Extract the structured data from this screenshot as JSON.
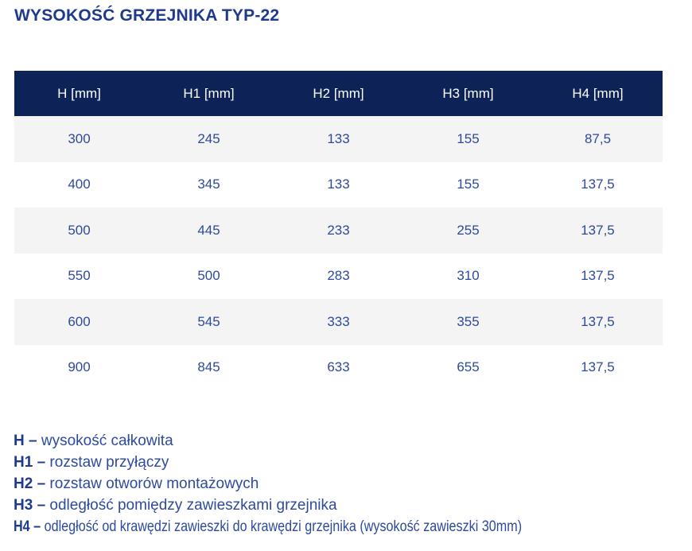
{
  "page": {
    "title": "WYSOKOŚĆ GRZEJNIKA TYP-22"
  },
  "table": {
    "headers": [
      "H [mm]",
      "H1 [mm]",
      "H2 [mm]",
      "H3 [mm]",
      "H4 [mm]"
    ],
    "rows": [
      [
        "300",
        "245",
        "133",
        "155",
        "87,5"
      ],
      [
        "400",
        "345",
        "133",
        "155",
        "137,5"
      ],
      [
        "500",
        "445",
        "233",
        "255",
        "137,5"
      ],
      [
        "550",
        "500",
        "283",
        "310",
        "137,5"
      ],
      [
        "600",
        "545",
        "333",
        "355",
        "137,5"
      ],
      [
        "900",
        "845",
        "633",
        "655",
        "137,5"
      ]
    ]
  },
  "legend": [
    {
      "term": "H –",
      "definition": "wysokość całkowita"
    },
    {
      "term": "H1 –",
      "definition": "rozstaw przyłączy"
    },
    {
      "term": "H2 –",
      "definition": "rozstaw otworów montażowych"
    },
    {
      "term": "H3 –",
      "definition": "odległość pomiędzy zawieszkami grzejnika"
    },
    {
      "term": "H4 –",
      "definition": "odległość od krawędzi zawieszki do krawędzi grzejnika (wysokość zawieszki 30mm)"
    }
  ],
  "colors": {
    "title_blue": "#1e3a8c",
    "header_background": "#0d2257",
    "header_text": "#ffffff",
    "value_blue": "#2d4a9c",
    "zebra_row": "#f4f4f5",
    "page_background": "#ffffff"
  }
}
